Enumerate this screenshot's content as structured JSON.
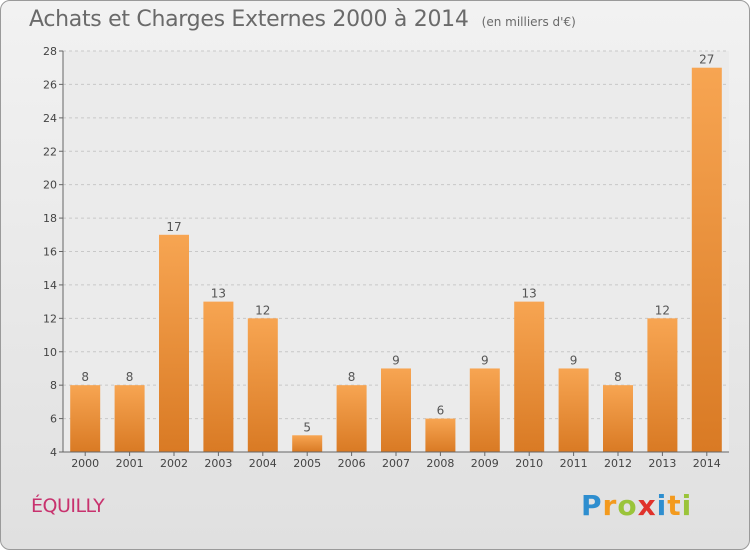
{
  "title": "Achats et Charges Externes 2000 à 2014",
  "unit": "(en milliers d'€)",
  "commune": "ÉQUILLY",
  "logo": {
    "letters": [
      "P",
      "r",
      "o",
      "x",
      "i",
      "t",
      "i"
    ],
    "colors": [
      "#2e8ecf",
      "#f39a1e",
      "#9ac43a",
      "#e0322b",
      "#2e8ecf",
      "#f39a1e",
      "#9ac43a"
    ]
  },
  "colors": {
    "bar_top": "#f7a552",
    "bar_bottom": "#d97a24",
    "commune": "#c8326e"
  },
  "chart_data": {
    "type": "bar",
    "categories": [
      "2000",
      "2001",
      "2002",
      "2003",
      "2004",
      "2005",
      "2006",
      "2007",
      "2008",
      "2009",
      "2010",
      "2011",
      "2012",
      "2013",
      "2014"
    ],
    "values": [
      8,
      8,
      17,
      13,
      12,
      5,
      8,
      9,
      6,
      9,
      13,
      9,
      8,
      12,
      27
    ],
    "data_labels": [
      "8",
      "8",
      "17",
      "13",
      "12",
      "5",
      "8",
      "9",
      "6",
      "9",
      "13",
      "9",
      "8",
      "12",
      "27"
    ],
    "ylim": [
      4,
      28
    ],
    "yticks": [
      4,
      6,
      8,
      10,
      12,
      14,
      16,
      18,
      20,
      22,
      24,
      26,
      28
    ],
    "grid": true,
    "xlabel": "",
    "ylabel": ""
  }
}
